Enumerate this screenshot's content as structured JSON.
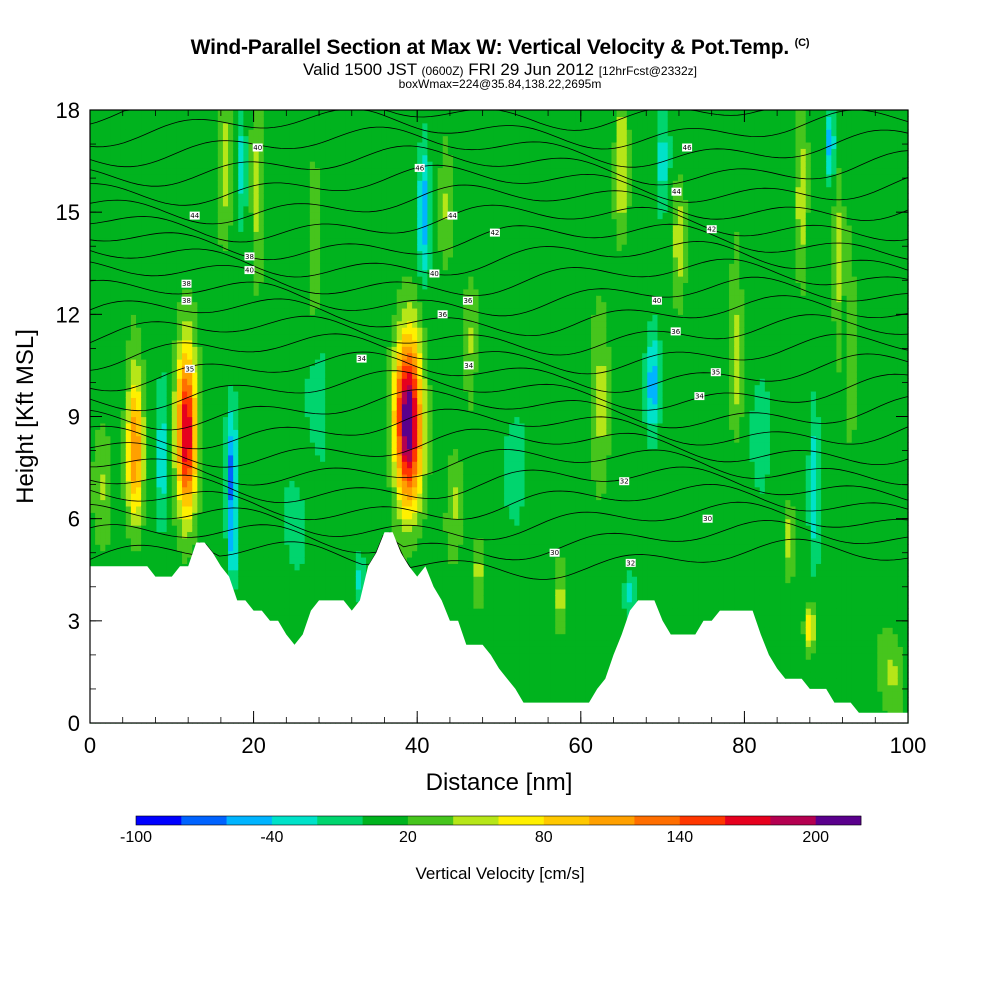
{
  "header": {
    "title": "Wind-Parallel Section at Max W: Vertical Velocity & Pot.Temp.",
    "copyright": "(C)",
    "valid_prefix": "Valid 1500 JST",
    "valid_utc": "(0600Z)",
    "valid_date": "FRI 29 Jun 2012",
    "forecast": "[12hrFcst@2332z]",
    "box_info": "boxWmax=224@35.84,138.22,2695m"
  },
  "chart_data": {
    "type": "heatmap",
    "xlabel": "Distance [nm]",
    "ylabel": "Height [Kft MSL]",
    "xlim": [
      0,
      100
    ],
    "ylim": [
      0,
      18
    ],
    "x_ticks": [
      0,
      20,
      40,
      60,
      80,
      100
    ],
    "x_tick_labels": [
      "0",
      "20",
      "40",
      "60",
      "80",
      "100"
    ],
    "y_ticks": [
      0,
      3,
      6,
      9,
      12,
      15,
      18
    ],
    "y_tick_labels": [
      "0",
      "3",
      "6",
      "9",
      "12",
      "15",
      "18"
    ],
    "background_value": 10,
    "terrain": [
      [
        0,
        4.6
      ],
      [
        4,
        4.6
      ],
      [
        7,
        4.6
      ],
      [
        8,
        4.3
      ],
      [
        9,
        4.3
      ],
      [
        10,
        4.3
      ],
      [
        11,
        4.6
      ],
      [
        12,
        4.6
      ],
      [
        13,
        5.3
      ],
      [
        14,
        5.3
      ],
      [
        15,
        5.0
      ],
      [
        16,
        4.6
      ],
      [
        17,
        4.3
      ],
      [
        18,
        3.6
      ],
      [
        19,
        3.6
      ],
      [
        20,
        3.3
      ],
      [
        21,
        3.3
      ],
      [
        22,
        3.0
      ],
      [
        23,
        3.0
      ],
      [
        24,
        2.6
      ],
      [
        25,
        2.3
      ],
      [
        26,
        2.6
      ],
      [
        27,
        3.3
      ],
      [
        28,
        3.6
      ],
      [
        29,
        3.6
      ],
      [
        30,
        3.6
      ],
      [
        31,
        3.6
      ],
      [
        32,
        3.3
      ],
      [
        33,
        3.6
      ],
      [
        34,
        4.6
      ],
      [
        35,
        5.0
      ],
      [
        36,
        5.6
      ],
      [
        37,
        5.6
      ],
      [
        38,
        5.0
      ],
      [
        39,
        4.6
      ],
      [
        40,
        4.3
      ],
      [
        41,
        4.6
      ],
      [
        42,
        4.0
      ],
      [
        43,
        3.6
      ],
      [
        44,
        3.0
      ],
      [
        45,
        3.0
      ],
      [
        46,
        2.3
      ],
      [
        47,
        2.3
      ],
      [
        48,
        2.3
      ],
      [
        49,
        2.0
      ],
      [
        50,
        1.6
      ],
      [
        51,
        1.3
      ],
      [
        52,
        1.0
      ],
      [
        53,
        0.6
      ],
      [
        55,
        0.6
      ],
      [
        57,
        0.6
      ],
      [
        59,
        0.6
      ],
      [
        61,
        0.6
      ],
      [
        62,
        1.0
      ],
      [
        63,
        1.3
      ],
      [
        64,
        2.0
      ],
      [
        65,
        2.6
      ],
      [
        66,
        3.3
      ],
      [
        67,
        3.6
      ],
      [
        69,
        3.6
      ],
      [
        70,
        3.0
      ],
      [
        71,
        2.6
      ],
      [
        72,
        2.6
      ],
      [
        74,
        2.6
      ],
      [
        75,
        3.0
      ],
      [
        76,
        3.0
      ],
      [
        77,
        3.3
      ],
      [
        79,
        3.3
      ],
      [
        81,
        3.3
      ],
      [
        82,
        2.6
      ],
      [
        83,
        2.0
      ],
      [
        84,
        1.6
      ],
      [
        85,
        1.3
      ],
      [
        87,
        1.3
      ],
      [
        88,
        1.0
      ],
      [
        90,
        1.0
      ],
      [
        91,
        0.6
      ],
      [
        93,
        0.6
      ],
      [
        94,
        0.3
      ],
      [
        96,
        0.3
      ],
      [
        98,
        0.3
      ],
      [
        100,
        0.3
      ]
    ],
    "vertical_velocity_features": [
      {
        "x": 5.5,
        "z": 8.2,
        "sx": 1.0,
        "sz": 2.2,
        "w": 110
      },
      {
        "x": 11.8,
        "z": 8.6,
        "sx": 1.2,
        "sz": 2.4,
        "w": 175
      },
      {
        "x": 38.9,
        "z": 8.9,
        "sx": 1.6,
        "sz": 2.4,
        "w": 215
      },
      {
        "x": 8.8,
        "z": 8.0,
        "sx": 0.7,
        "sz": 2.2,
        "w": -45
      },
      {
        "x": 17.3,
        "z": 7.2,
        "sx": 0.7,
        "sz": 2.0,
        "w": -80
      },
      {
        "x": 40.8,
        "z": 15.0,
        "sx": 0.7,
        "sz": 2.0,
        "w": -65
      },
      {
        "x": 68.8,
        "z": 10.0,
        "sx": 0.8,
        "sz": 1.6,
        "w": -60
      },
      {
        "x": 88.5,
        "z": 7.0,
        "sx": 0.6,
        "sz": 2.0,
        "w": -50
      },
      {
        "x": 90.5,
        "z": 17.0,
        "sx": 0.5,
        "sz": 1.0,
        "w": -70
      },
      {
        "x": 18.5,
        "z": 16.5,
        "sx": 0.6,
        "sz": 1.5,
        "w": -45
      },
      {
        "x": 70.0,
        "z": 16.5,
        "sx": 0.8,
        "sz": 1.5,
        "w": -40
      },
      {
        "x": 17.5,
        "z": 5.0,
        "sx": 0.5,
        "sz": 0.8,
        "w": -40
      },
      {
        "x": 66.0,
        "z": 3.8,
        "sx": 0.7,
        "sz": 0.6,
        "w": -40
      },
      {
        "x": 33.0,
        "z": 4.2,
        "sx": 0.6,
        "sz": 0.7,
        "w": -35
      },
      {
        "x": 25.0,
        "z": 6.0,
        "sx": 1.5,
        "sz": 1.5,
        "w": -20
      },
      {
        "x": 28.0,
        "z": 9.5,
        "sx": 1.5,
        "sz": 2.0,
        "w": -20
      },
      {
        "x": 52.0,
        "z": 7.5,
        "sx": 1.5,
        "sz": 2.0,
        "w": -20
      },
      {
        "x": 82.0,
        "z": 8.0,
        "sx": 1.5,
        "sz": 2.0,
        "w": -20
      },
      {
        "x": 16.5,
        "z": 16.5,
        "sx": 0.8,
        "sz": 2.0,
        "w": 45
      },
      {
        "x": 20.5,
        "z": 15.5,
        "sx": 0.8,
        "sz": 2.4,
        "w": 40
      },
      {
        "x": 27.5,
        "z": 14.0,
        "sx": 0.8,
        "sz": 2.5,
        "w": 25
      },
      {
        "x": 43.5,
        "z": 15.5,
        "sx": 0.8,
        "sz": 2.0,
        "w": 30
      },
      {
        "x": 46.5,
        "z": 11.0,
        "sx": 0.8,
        "sz": 2.0,
        "w": 30
      },
      {
        "x": 62.5,
        "z": 9.5,
        "sx": 1.0,
        "sz": 2.5,
        "w": 40
      },
      {
        "x": 65.0,
        "z": 16.5,
        "sx": 0.8,
        "sz": 1.8,
        "w": 60
      },
      {
        "x": 72.0,
        "z": 14.0,
        "sx": 0.8,
        "sz": 2.0,
        "w": 40
      },
      {
        "x": 79.0,
        "z": 11.0,
        "sx": 0.8,
        "sz": 2.5,
        "w": 40
      },
      {
        "x": 87.0,
        "z": 15.5,
        "sx": 0.7,
        "sz": 2.5,
        "w": 45
      },
      {
        "x": 91.5,
        "z": 13.5,
        "sx": 0.6,
        "sz": 2.5,
        "w": 40
      },
      {
        "x": 88.0,
        "z": 2.8,
        "sx": 0.6,
        "sz": 0.6,
        "w": 70
      },
      {
        "x": 85.5,
        "z": 5.5,
        "sx": 0.6,
        "sz": 1.0,
        "w": 45
      },
      {
        "x": 47.5,
        "z": 4.5,
        "sx": 0.8,
        "sz": 1.0,
        "w": 40
      },
      {
        "x": 57.5,
        "z": 3.5,
        "sx": 0.7,
        "sz": 1.0,
        "w": 40
      },
      {
        "x": 44.5,
        "z": 6.5,
        "sx": 1.0,
        "sz": 1.5,
        "w": 35
      },
      {
        "x": 1.5,
        "z": 7.0,
        "sx": 1.2,
        "sz": 1.5,
        "w": 35
      },
      {
        "x": 98.0,
        "z": 1.5,
        "sx": 1.5,
        "sz": 1.2,
        "w": 35
      },
      {
        "x": 93.0,
        "z": 11.0,
        "sx": 0.6,
        "sz": 3.0,
        "w": 30
      }
    ],
    "potential_temperature_contours": [
      {
        "label": "30",
        "x": 56.8,
        "z": 5.0
      },
      {
        "label": "30",
        "x": 75.5,
        "z": 6.0
      },
      {
        "label": "32",
        "x": 66.1,
        "z": 4.7
      },
      {
        "label": "32",
        "x": 65.3,
        "z": 7.1
      },
      {
        "label": "34",
        "x": 33.2,
        "z": 10.7
      },
      {
        "label": "34",
        "x": 46.3,
        "z": 10.5
      },
      {
        "label": "34",
        "x": 74.5,
        "z": 9.6
      },
      {
        "label": "35",
        "x": 12.2,
        "z": 10.4
      },
      {
        "label": "35",
        "x": 76.5,
        "z": 10.3
      },
      {
        "label": "36",
        "x": 43.1,
        "z": 12.0
      },
      {
        "label": "36",
        "x": 46.2,
        "z": 12.4
      },
      {
        "label": "36",
        "x": 71.6,
        "z": 11.5
      },
      {
        "label": "38",
        "x": 11.8,
        "z": 12.4
      },
      {
        "label": "38",
        "x": 11.8,
        "z": 12.9
      },
      {
        "label": "38",
        "x": 19.5,
        "z": 13.7
      },
      {
        "label": "40",
        "x": 19.5,
        "z": 13.3
      },
      {
        "label": "40",
        "x": 42.1,
        "z": 13.2
      },
      {
        "label": "40",
        "x": 69.3,
        "z": 12.4
      },
      {
        "label": "40",
        "x": 20.5,
        "z": 16.9
      },
      {
        "label": "42",
        "x": 49.5,
        "z": 14.4
      },
      {
        "label": "42",
        "x": 76.0,
        "z": 14.5
      },
      {
        "label": "44",
        "x": 12.8,
        "z": 14.9
      },
      {
        "label": "44",
        "x": 44.3,
        "z": 14.9
      },
      {
        "label": "44",
        "x": 71.7,
        "z": 15.6
      },
      {
        "label": "46",
        "x": 40.3,
        "z": 16.3
      },
      {
        "label": "46",
        "x": 73.0,
        "z": 16.9
      }
    ],
    "colorbar": {
      "label": "Vertical Velocity [cm/s]",
      "levels": [
        -100,
        -80,
        -60,
        -40,
        -20,
        0,
        20,
        40,
        60,
        80,
        100,
        120,
        140,
        160,
        180,
        200,
        220
      ],
      "tick_labels": [
        "-100",
        "-40",
        "20",
        "80",
        "140",
        "200"
      ],
      "tick_values": [
        -100,
        -40,
        20,
        80,
        140,
        200
      ],
      "colors": [
        "#0000ff",
        "#0063ff",
        "#00b4ff",
        "#00e2c9",
        "#00d56e",
        "#00b31e",
        "#46c51d",
        "#b6e618",
        "#fff000",
        "#ffc800",
        "#ffa000",
        "#ff6e00",
        "#ff3700",
        "#e6001e",
        "#b40050",
        "#5a008c"
      ]
    }
  }
}
